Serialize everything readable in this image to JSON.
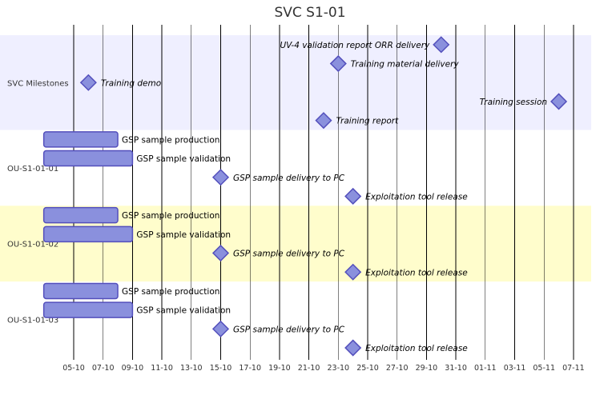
{
  "chart_data": {
    "type": "gantt",
    "title": "SVC S1-01",
    "axis": {
      "ticks": [
        "05-10",
        "07-10",
        "09-10",
        "11-10",
        "13-10",
        "15-10",
        "17-10",
        "19-10",
        "21-10",
        "23-10",
        "25-10",
        "27-10",
        "29-10",
        "31-10",
        "01-11",
        "03-11",
        "05-11",
        "07-11"
      ]
    },
    "colors": {
      "bar_fill": "#8a90dd",
      "bar_stroke": "#534fbc",
      "section_band_odd": "#efefff",
      "section_band_even": "#fffdcc",
      "grid": "#000000"
    },
    "sections": [
      {
        "name": "SVC Milestones",
        "band": "odd",
        "rows": 5,
        "tasks": [
          {
            "label": "UV-4 validation report ORR delivery",
            "type": "milestone",
            "day": 30,
            "row": 0,
            "label_side": "left"
          },
          {
            "label": "Training material delivery",
            "type": "milestone",
            "day": 23,
            "row": 1,
            "label_side": "right"
          },
          {
            "label": "Training demo",
            "type": "milestone",
            "day": 6,
            "row": 2,
            "label_side": "right"
          },
          {
            "label": "Training session",
            "type": "milestone",
            "day": 38,
            "row": 3,
            "label_side": "left"
          },
          {
            "label": "Training report",
            "type": "milestone",
            "day": 22,
            "row": 4,
            "label_side": "right"
          }
        ]
      },
      {
        "name": "OU-S1-01-01",
        "band": "none",
        "rows": 4,
        "tasks": [
          {
            "label": "GSP sample production",
            "type": "task",
            "start_day": 4,
            "end_day": 8,
            "row": 0
          },
          {
            "label": "GSP sample validation",
            "type": "task",
            "start_day": 4,
            "end_day": 9,
            "row": 1
          },
          {
            "label": "GSP sample delivery to PC",
            "type": "milestone",
            "day": 15,
            "row": 2,
            "label_side": "right"
          },
          {
            "label": "Exploitation tool release",
            "type": "milestone",
            "day": 24,
            "row": 3,
            "label_side": "right"
          }
        ]
      },
      {
        "name": "OU-S1-01-02",
        "band": "even",
        "rows": 4,
        "tasks": [
          {
            "label": "GSP sample production",
            "type": "task",
            "start_day": 4,
            "end_day": 8,
            "row": 0
          },
          {
            "label": "GSP sample validation",
            "type": "task",
            "start_day": 4,
            "end_day": 9,
            "row": 1
          },
          {
            "label": "GSP sample delivery to PC",
            "type": "milestone",
            "day": 15,
            "row": 2,
            "label_side": "right"
          },
          {
            "label": "Exploitation tool release",
            "type": "milestone",
            "day": 24,
            "row": 3,
            "label_side": "right"
          }
        ]
      },
      {
        "name": "OU-S1-01-03",
        "band": "none",
        "rows": 4,
        "tasks": [
          {
            "label": "GSP sample production",
            "type": "task",
            "start_day": 4,
            "end_day": 8,
            "row": 0
          },
          {
            "label": "GSP sample validation",
            "type": "task",
            "start_day": 4,
            "end_day": 9,
            "row": 1
          },
          {
            "label": "GSP sample delivery to PC",
            "type": "milestone",
            "day": 15,
            "row": 2,
            "label_side": "right"
          },
          {
            "label": "Exploitation tool release",
            "type": "milestone",
            "day": 24,
            "row": 3,
            "label_side": "right"
          }
        ]
      }
    ]
  }
}
